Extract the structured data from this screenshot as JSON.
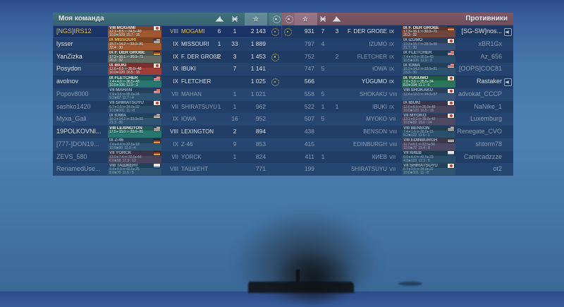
{
  "colors": {
    "self": "#e9c95c",
    "alive": "#e4ecf4",
    "dead": "#8c9db2",
    "karma": "#d6b84e",
    "left_header": "#3e6b7a",
    "right_header": "#7c5765"
  },
  "legend": {
    "frags_icon": "ship-destroyed",
    "planes_icon": "aircraft-destroyed",
    "xp_icon": "star",
    "karma_icon": "commendation",
    "muted_icon": "muted-speaker"
  },
  "left_panel": {
    "title": "Моя команда",
    "players": [
      {
        "name": "[NGS]IRS12",
        "self": true,
        "dead": false,
        "karma": true,
        "tier": "VIII",
        "ship": "MOGAMI",
        "frags": "6",
        "planes": "1",
        "xp": "2 143",
        "card": {
          "title": "VIII MOGAMI",
          "flag": "jp",
          "bg": "rgba(172,90,42,0.92)",
          "title_color": "#f2f2ee",
          "s1": [
            "12.1",
            "8.5",
            "34.5",
            "40"
          ],
          "s2": [
            "10.0",
            "109",
            "15.7",
            "15"
          ]
        }
      },
      {
        "name": "lysser",
        "self": false,
        "dead": false,
        "karma": false,
        "tier": "IX",
        "ship": "MISSOURI",
        "frags": "1",
        "planes": "33",
        "xp": "1 889",
        "card": {
          "title": "IX MISSOURI",
          "flag": "us",
          "bg": "rgba(172,90,42,0.92)",
          "title_color": "#e9c95c",
          "s1": [
            "15.7",
            "14.2",
            "33.0",
            "81"
          ],
          "s2": [
            "33.4",
            "30"
          ]
        }
      },
      {
        "name": "YanZizka",
        "self": false,
        "dead": false,
        "karma": true,
        "tier": "IX",
        "ship": "F. DER GROßE",
        "frags": "2",
        "planes": "3",
        "xp": "1 453",
        "card": {
          "title": "IX F. DER GROßE",
          "flag": "de",
          "bg": "rgba(104,112,100,0.92)",
          "title_color": "#f2f2ee",
          "s1": [
            "17.3",
            "16.1",
            "30.0",
            "71"
          ],
          "s2": [
            "20.3",
            "32"
          ]
        }
      },
      {
        "name": "Posydon",
        "self": false,
        "dead": false,
        "karma": false,
        "tier": "IX",
        "ship": "IBUKI",
        "frags": "",
        "planes": "7",
        "xp": "1 141",
        "card": {
          "title": "IX IBUKI",
          "flag": "jp",
          "bg": "rgba(168,62,52,0.92)",
          "title_color": "#f2f2ee",
          "s1": [
            "12.6",
            "8.5",
            "35.0",
            "48"
          ],
          "s2": [
            "10.0",
            "120",
            "16.5",
            "15"
          ]
        }
      },
      {
        "name": "avolnov",
        "self": false,
        "dead": false,
        "karma": true,
        "tier": "IX",
        "ship": "FLETCHER",
        "frags": "",
        "planes": "",
        "xp": "1 025",
        "card": {
          "title": "IX FLETCHER",
          "flag": "us",
          "bg": "rgba(42,122,112,0.92)",
          "title_color": "#f2f2ee",
          "s1": [
            "7.4",
            "4.0",
            "36.5",
            "43"
          ],
          "s2": [
            "10.5",
            "106",
            "12.9",
            "3"
          ]
        }
      },
      {
        "name": "Popov8000",
        "self": false,
        "dead": true,
        "karma": false,
        "tier": "VII",
        "ship": "MAHAN",
        "frags": "",
        "planes": "1",
        "xp": "1 021",
        "card": {
          "title": "VII MAHAN",
          "flag": "us",
          "bg": "rgba(62,112,118,0.34)",
          "title_color": "#9fb0c2",
          "s1": [
            "7.9",
            "3.6",
            "35.0",
            "24"
          ],
          "s2": [
            "9.2",
            "87",
            "11.7",
            "4"
          ]
        }
      },
      {
        "name": "sashko1420",
        "self": false,
        "dead": true,
        "karma": false,
        "tier": "VII",
        "ship": "SHIRATSUYU",
        "frags": "1",
        "planes": "1",
        "xp": "962",
        "card": {
          "title": "VII SHIRATSUYU",
          "flag": "jp",
          "bg": "rgba(62,112,118,0.34)",
          "title_color": "#9fb0c2",
          "s1": [
            "6.7",
            "1.5",
            "34.0",
            "22"
          ],
          "s2": [
            "10.0",
            "101",
            "11",
            "8"
          ]
        }
      },
      {
        "name": "Myxa_Gali",
        "self": false,
        "dead": true,
        "karma": false,
        "tier": "IX",
        "ship": "IOWA",
        "frags": "",
        "planes": "16",
        "xp": "952",
        "card": {
          "title": "IX IOWA",
          "flag": "us",
          "bg": "rgba(62,112,118,0.34)",
          "title_color": "#9fb0c2",
          "s1": [
            "16.2",
            "14.2",
            "33.0",
            "81"
          ],
          "s2": [
            "21.3",
            "30"
          ]
        }
      },
      {
        "name": "19POLKOVNI...",
        "self": false,
        "dead": false,
        "karma": false,
        "tier": "VIII",
        "ship": "LEXINGTON",
        "frags": "",
        "planes": "2",
        "xp": "894",
        "card": {
          "title": "VIII LEXINGTON",
          "flag": "us",
          "bg": "rgba(42,122,112,0.92)",
          "title_color": "#f2f2ee",
          "s1": [
            "17.5",
            "15.0",
            "33.0",
            "81"
          ],
          "s2": []
        }
      },
      {
        "name": "[777-]DON19...",
        "self": false,
        "dead": true,
        "karma": false,
        "tier": "IX",
        "ship": "Z-46",
        "frags": "",
        "planes": "9",
        "xp": "853",
        "card": {
          "title": "IX Z-46",
          "flag": "de",
          "bg": "rgba(62,112,118,0.34)",
          "title_color": "#9fb0c2",
          "s1": [
            "7.6",
            "4.4",
            "37.5",
            "18"
          ],
          "s2": [
            "10.0",
            "90",
            "11.0",
            "4"
          ]
        }
      },
      {
        "name": "ZEVS_580",
        "self": false,
        "dead": true,
        "karma": false,
        "tier": "VII",
        "ship": "YORCK",
        "frags": "",
        "planes": "1",
        "xp": "824",
        "card": {
          "title": "VII YORCK",
          "flag": "de",
          "bg": "rgba(146,78,76,0.36)",
          "title_color": "#9fb0c2",
          "s1": [
            "13.9",
            "7.4",
            "32.0",
            "44"
          ],
          "s2": [
            "6.0",
            "58",
            "17.3",
            "12"
          ]
        }
      },
      {
        "name": "RenamedUse...",
        "self": false,
        "dead": true,
        "karma": false,
        "tier": "VIII",
        "ship": "ТАШКЕНТ",
        "frags": "",
        "planes": "",
        "xp": "771",
        "card": {
          "title": "VIII ТАШКЕНТ",
          "flag": "su",
          "bg": "rgba(62,112,118,0.34)",
          "title_color": "#9fb0c2",
          "s1": [
            "9.4",
            "4.9",
            "42.5",
            "25"
          ],
          "s2": [
            "8.0",
            "70",
            "11.6",
            "5"
          ]
        }
      }
    ]
  },
  "right_panel": {
    "title": "Противники",
    "players": [
      {
        "name": "[SG-SW]nos...",
        "self": false,
        "dead": false,
        "karma": true,
        "muted": true,
        "tier": "IX",
        "ship": "F. DER GROßE",
        "frags": "3",
        "planes": "7",
        "xp": "931",
        "card": {
          "title": "IX F. DER GROßE",
          "flag": "de",
          "bg": "rgba(122,70,58,0.92)",
          "title_color": "#f2f2ee",
          "s1": [
            "17.3",
            "16.1",
            "30.0",
            "71"
          ],
          "s2": [
            "20.3",
            "32"
          ]
        }
      },
      {
        "name": "xBR1Gx",
        "self": false,
        "dead": true,
        "karma": false,
        "muted": false,
        "tier": "IX",
        "ship": "IZUMO",
        "frags": "",
        "planes": "4",
        "xp": "797",
        "card": {
          "title": "IX IZUMO",
          "flag": "jp",
          "bg": "rgba(96,112,136,0.32)",
          "title_color": "#9fb0c2",
          "s1": [
            "19.3",
            "15.7",
            "28.0",
            "66"
          ],
          "s2": [
            "21.7",
            "30"
          ]
        }
      },
      {
        "name": "Az_656",
        "self": false,
        "dead": true,
        "karma": false,
        "muted": false,
        "tier": "IX",
        "ship": "FLETCHER",
        "frags": "2",
        "planes": "",
        "xp": "752",
        "card": {
          "title": "IX FLETCHER",
          "flag": "us",
          "bg": "rgba(62,112,118,0.34)",
          "title_color": "#9fb0c2",
          "s1": [
            "7.4",
            "4.0",
            "36.5",
            "43"
          ],
          "s2": [
            "10.5",
            "106",
            "12.9",
            "3"
          ]
        }
      },
      {
        "name": "[OOPS]COC81",
        "self": false,
        "dead": true,
        "karma": false,
        "muted": false,
        "tier": "IX",
        "ship": "IOWA",
        "frags": "",
        "planes": "5",
        "xp": "747",
        "card": {
          "title": "IX IOWA",
          "flag": "us",
          "bg": "rgba(62,112,118,0.34)",
          "title_color": "#9fb0c2",
          "s1": [
            "16.2",
            "14.2",
            "33.0",
            "81"
          ],
          "s2": [
            "23.3",
            "30"
          ]
        }
      },
      {
        "name": "Rastaker",
        "self": false,
        "dead": false,
        "karma": false,
        "muted": true,
        "tier": "IX",
        "ship": "YŪGUMO",
        "frags": "",
        "planes": "",
        "xp": "566",
        "card": {
          "title": "IX YUGUMO",
          "flag": "jp",
          "bg": "rgba(44,122,88,0.92)",
          "title_color": "#f2f2ee",
          "s1": [
            "7.0",
            "3.9",
            "35.5",
            "34"
          ],
          "s2": [
            "8.0",
            "104",
            "11.1",
            "6"
          ]
        }
      },
      {
        "name": "advokat_CCCP",
        "self": false,
        "dead": true,
        "karma": false,
        "muted": false,
        "tier": "VIII",
        "ship": "SHOKAKU",
        "frags": "",
        "planes": "5",
        "xp": "558",
        "card": {
          "title": "VIII SHOKAKU",
          "flag": "jp",
          "bg": "rgba(96,112,136,0.32)",
          "title_color": "#9fb0c2",
          "s1": [
            "12.4",
            "12.0",
            "34.0",
            "57"
          ],
          "s2": []
        }
      },
      {
        "name": "NaNike_1",
        "self": false,
        "dead": true,
        "karma": false,
        "muted": false,
        "tier": "IX",
        "ship": "IBUKI",
        "frags": "1",
        "planes": "1",
        "xp": "522",
        "card": {
          "title": "IX IBUKI",
          "flag": "jp",
          "bg": "rgba(146,78,76,0.36)",
          "title_color": "#9fb0c2",
          "s1": [
            "12.6",
            "8.5",
            "35.0",
            "48"
          ],
          "s2": [
            "10.0",
            "120",
            "16.5",
            "15"
          ]
        }
      },
      {
        "name": "Luxemburg",
        "self": false,
        "dead": true,
        "karma": false,
        "muted": false,
        "tier": "VII",
        "ship": "MYOKO",
        "frags": "",
        "planes": "5",
        "xp": "507",
        "card": {
          "title": "VII MYOKO",
          "flag": "jp",
          "bg": "rgba(146,78,76,0.36)",
          "title_color": "#9fb0c2",
          "s1": [
            "13.1",
            "8.2",
            "35.0",
            "42"
          ],
          "s2": [
            "10.0",
            "82",
            "15.6",
            "14"
          ]
        }
      },
      {
        "name": "Renegate_CVO",
        "self": false,
        "dead": true,
        "karma": false,
        "muted": false,
        "tier": "VIII",
        "ship": "BENSON",
        "frags": "",
        "planes": "",
        "xp": "438",
        "card": {
          "title": "VIII BENSON",
          "flag": "us",
          "bg": "rgba(62,112,118,0.34)",
          "title_color": "#9fb0c2",
          "s1": [
            "7.4",
            "1.6",
            "38.0",
            "15"
          ],
          "s2": [
            "9.2",
            "122",
            "11.6",
            "1"
          ]
        }
      },
      {
        "name": "shtorm78",
        "self": false,
        "dead": true,
        "karma": false,
        "muted": false,
        "tier": "VIII",
        "ship": "EDINBURGH",
        "frags": "",
        "planes": "",
        "xp": "415",
        "card": {
          "title": "VIII EDINBURGH",
          "flag": "uk",
          "bg": "rgba(146,78,76,0.36)",
          "title_color": "#9fb0c2",
          "s1": [
            "11.7",
            "8.1",
            "32.5",
            "56"
          ],
          "s2": [
            "10.0",
            "72",
            "15.4",
            "8"
          ]
        }
      },
      {
        "name": "Camicadzzze",
        "self": false,
        "dead": true,
        "karma": false,
        "muted": false,
        "tier": "VII",
        "ship": "КИЕВ",
        "frags": "",
        "planes": "1",
        "xp": "411",
        "card": {
          "title": "VII КИЕВ",
          "flag": "su",
          "bg": "rgba(62,112,118,0.34)",
          "title_color": "#9fb0c2",
          "s1": [
            "9.0",
            "4.4",
            "42.5",
            "23"
          ],
          "s2": [
            "4.0",
            "123",
            "12.3",
            "5"
          ]
        }
      },
      {
        "name": "ot2",
        "self": false,
        "dead": true,
        "karma": false,
        "muted": false,
        "tier": "VII",
        "ship": "SHIRATSUYU",
        "frags": "",
        "planes": "",
        "xp": "199",
        "card": {
          "title": "VII SHIRATSUYU",
          "flag": "jp",
          "bg": "rgba(62,112,118,0.34)",
          "title_color": "#9fb0c2",
          "s1": [
            "6.7",
            "3.5",
            "34.0",
            "22"
          ],
          "s2": [
            "10.0",
            "101",
            "11",
            "8"
          ]
        }
      }
    ]
  }
}
